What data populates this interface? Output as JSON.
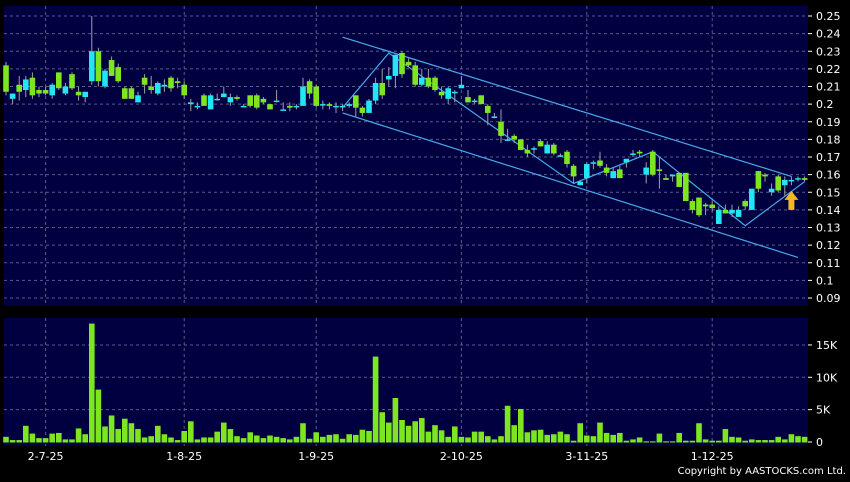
{
  "colors": {
    "background": "#000000",
    "plot_bg": "#000040",
    "grid": "#5a5a8a",
    "up": "#22e5f5",
    "down": "#7ee621",
    "volume": "#7ee621",
    "trendline": "#4aa8e8",
    "wick": "#a0a0a0",
    "arrow": "#f5b623"
  },
  "copyright": "Copyright by AASTOCKS.com Ltd.",
  "chart_data": [
    {
      "type": "candlestick",
      "title": "",
      "ylim": [
        0.09,
        0.25
      ],
      "yticks": [
        "0.25",
        "0.24",
        "0.23",
        "0.22",
        "0.21",
        "0.2",
        "0.19",
        "0.18",
        "0.17",
        "0.16",
        "0.15",
        "0.14",
        "0.13",
        "0.12",
        "0.11",
        "0.1",
        "0.09"
      ],
      "grid": true,
      "y_axis_position": "right",
      "xticks": [
        {
          "label": "2-7-25",
          "index": 6
        },
        {
          "label": "1-8-25",
          "index": 27
        },
        {
          "label": "1-9-25",
          "index": 47
        },
        {
          "label": "2-10-25",
          "index": 69
        },
        {
          "label": "3-11-25",
          "index": 88
        },
        {
          "label": "1-12-25",
          "index": 107
        }
      ],
      "ohlc": [
        [
          0.222,
          0.224,
          0.205,
          0.207
        ],
        [
          0.203,
          0.206,
          0.2,
          0.206
        ],
        [
          0.211,
          0.216,
          0.202,
          0.207
        ],
        [
          0.208,
          0.216,
          0.204,
          0.214
        ],
        [
          0.215,
          0.218,
          0.203,
          0.205
        ],
        [
          0.208,
          0.21,
          0.204,
          0.206
        ],
        [
          0.208,
          0.21,
          0.205,
          0.206
        ],
        [
          0.205,
          0.212,
          0.203,
          0.211
        ],
        [
          0.218,
          0.218,
          0.208,
          0.209
        ],
        [
          0.206,
          0.212,
          0.205,
          0.21
        ],
        [
          0.217,
          0.218,
          0.208,
          0.209
        ],
        [
          0.207,
          0.21,
          0.202,
          0.205
        ],
        [
          0.204,
          0.207,
          0.201,
          0.207
        ],
        [
          0.213,
          0.25,
          0.211,
          0.23
        ],
        [
          0.23,
          0.232,
          0.21,
          0.213
        ],
        [
          0.21,
          0.22,
          0.209,
          0.219
        ],
        [
          0.225,
          0.227,
          0.216,
          0.216
        ],
        [
          0.221,
          0.223,
          0.212,
          0.213
        ],
        [
          0.209,
          0.21,
          0.203,
          0.203
        ],
        [
          0.209,
          0.21,
          0.203,
          0.203
        ],
        [
          0.201,
          0.207,
          0.201,
          0.205
        ],
        [
          0.215,
          0.217,
          0.206,
          0.211
        ],
        [
          0.21,
          0.216,
          0.206,
          0.208
        ],
        [
          0.206,
          0.213,
          0.205,
          0.212
        ],
        [
          0.21,
          0.214,
          0.207,
          0.211
        ],
        [
          0.215,
          0.216,
          0.207,
          0.209
        ],
        [
          0.213,
          0.215,
          0.209,
          0.212
        ],
        [
          0.211,
          0.213,
          0.203,
          0.205
        ],
        [
          0.2,
          0.203,
          0.196,
          0.201
        ],
        [
          0.199,
          0.201,
          0.197,
          0.199
        ],
        [
          0.205,
          0.206,
          0.199,
          0.199
        ],
        [
          0.197,
          0.206,
          0.197,
          0.205
        ],
        [
          0.203,
          0.206,
          0.202,
          0.203
        ],
        [
          0.204,
          0.21,
          0.204,
          0.206
        ],
        [
          0.201,
          0.206,
          0.199,
          0.204
        ],
        [
          0.204,
          0.205,
          0.202,
          0.203
        ],
        [
          0.199,
          0.2,
          0.199,
          0.199
        ],
        [
          0.205,
          0.205,
          0.198,
          0.199
        ],
        [
          0.205,
          0.206,
          0.197,
          0.198
        ],
        [
          0.203,
          0.204,
          0.2,
          0.201
        ],
        [
          0.2,
          0.2,
          0.197,
          0.197
        ],
        [
          0.202,
          0.208,
          0.201,
          0.202
        ],
        [
          0.197,
          0.201,
          0.197,
          0.197
        ],
        [
          0.199,
          0.201,
          0.196,
          0.198
        ],
        [
          0.199,
          0.2,
          0.197,
          0.199
        ],
        [
          0.199,
          0.215,
          0.199,
          0.21
        ],
        [
          0.213,
          0.214,
          0.203,
          0.206
        ],
        [
          0.21,
          0.211,
          0.198,
          0.199
        ],
        [
          0.2,
          0.202,
          0.197,
          0.2
        ],
        [
          0.2,
          0.201,
          0.197,
          0.199
        ],
        [
          0.199,
          0.201,
          0.195,
          0.199
        ],
        [
          0.199,
          0.2,
          0.196,
          0.199
        ],
        [
          0.199,
          0.201,
          0.198,
          0.2
        ],
        [
          0.205,
          0.205,
          0.193,
          0.198
        ],
        [
          0.198,
          0.199,
          0.193,
          0.195
        ],
        [
          0.195,
          0.203,
          0.195,
          0.202
        ],
        [
          0.202,
          0.215,
          0.2,
          0.212
        ],
        [
          0.212,
          0.22,
          0.203,
          0.205
        ],
        [
          0.214,
          0.221,
          0.21,
          0.216
        ],
        [
          0.216,
          0.228,
          0.209,
          0.228
        ],
        [
          0.229,
          0.23,
          0.215,
          0.217
        ],
        [
          0.224,
          0.226,
          0.221,
          0.222
        ],
        [
          0.222,
          0.224,
          0.21,
          0.211
        ],
        [
          0.211,
          0.22,
          0.21,
          0.215
        ],
        [
          0.215,
          0.22,
          0.209,
          0.21
        ],
        [
          0.215,
          0.216,
          0.207,
          0.208
        ],
        [
          0.207,
          0.21,
          0.203,
          0.205
        ],
        [
          0.203,
          0.21,
          0.2,
          0.209
        ],
        [
          0.207,
          0.208,
          0.201,
          0.207
        ],
        [
          0.209,
          0.216,
          0.209,
          0.211
        ],
        [
          0.204,
          0.208,
          0.201,
          0.201
        ],
        [
          0.202,
          0.203,
          0.2,
          0.202
        ],
        [
          0.205,
          0.205,
          0.2,
          0.2
        ],
        [
          0.199,
          0.2,
          0.188,
          0.195
        ],
        [
          0.193,
          0.195,
          0.192,
          0.193
        ],
        [
          0.19,
          0.197,
          0.178,
          0.182
        ],
        [
          0.18,
          0.186,
          0.179,
          0.18
        ],
        [
          0.182,
          0.183,
          0.178,
          0.18
        ],
        [
          0.18,
          0.18,
          0.174,
          0.174
        ],
        [
          0.174,
          0.177,
          0.17,
          0.172
        ],
        [
          0.175,
          0.176,
          0.172,
          0.175
        ],
        [
          0.179,
          0.18,
          0.176,
          0.176
        ],
        [
          0.172,
          0.179,
          0.172,
          0.177
        ],
        [
          0.177,
          0.178,
          0.171,
          0.172
        ],
        [
          0.171,
          0.172,
          0.17,
          0.171
        ],
        [
          0.173,
          0.174,
          0.164,
          0.166
        ],
        [
          0.165,
          0.166,
          0.155,
          0.159
        ],
        [
          0.154,
          0.157,
          0.154,
          0.156
        ],
        [
          0.158,
          0.167,
          0.155,
          0.166
        ],
        [
          0.167,
          0.168,
          0.163,
          0.167
        ],
        [
          0.168,
          0.173,
          0.164,
          0.165
        ],
        [
          0.164,
          0.166,
          0.159,
          0.161
        ],
        [
          0.158,
          0.164,
          0.158,
          0.162
        ],
        [
          0.163,
          0.165,
          0.158,
          0.158
        ],
        [
          0.167,
          0.168,
          0.164,
          0.169
        ],
        [
          0.172,
          0.174,
          0.17,
          0.172
        ],
        [
          0.173,
          0.174,
          0.17,
          0.172
        ],
        [
          0.16,
          0.167,
          0.155,
          0.164
        ],
        [
          0.173,
          0.174,
          0.159,
          0.16
        ],
        [
          0.163,
          0.17,
          0.152,
          0.162
        ],
        [
          0.158,
          0.16,
          0.157,
          0.157
        ],
        [
          0.159,
          0.16,
          0.156,
          0.16
        ],
        [
          0.161,
          0.161,
          0.153,
          0.153
        ],
        [
          0.161,
          0.161,
          0.145,
          0.145
        ],
        [
          0.145,
          0.146,
          0.138,
          0.14
        ],
        [
          0.147,
          0.147,
          0.136,
          0.137
        ],
        [
          0.143,
          0.144,
          0.137,
          0.142
        ],
        [
          0.143,
          0.145,
          0.139,
          0.141
        ],
        [
          0.132,
          0.142,
          0.132,
          0.14
        ],
        [
          0.14,
          0.143,
          0.138,
          0.138
        ],
        [
          0.138,
          0.143,
          0.136,
          0.14
        ],
        [
          0.136,
          0.142,
          0.136,
          0.14
        ],
        [
          0.145,
          0.146,
          0.14,
          0.142
        ],
        [
          0.14,
          0.152,
          0.14,
          0.152
        ],
        [
          0.162,
          0.162,
          0.15,
          0.152
        ],
        [
          0.16,
          0.161,
          0.156,
          0.159
        ],
        [
          0.15,
          0.155,
          0.148,
          0.152
        ],
        [
          0.159,
          0.16,
          0.15,
          0.151
        ],
        [
          0.154,
          0.159,
          0.148,
          0.157
        ],
        [
          0.157,
          0.159,
          0.154,
          0.157
        ],
        [
          0.158,
          0.159,
          0.156,
          0.158
        ],
        [
          0.158,
          0.159,
          0.156,
          0.157
        ]
      ],
      "trendlines": [
        {
          "name": "channel-upper",
          "points": [
            [
              51,
              0.238
            ],
            [
              119,
              0.159
            ]
          ]
        },
        {
          "name": "channel-lower",
          "points": [
            [
              51,
              0.195
            ],
            [
              120,
              0.113
            ]
          ]
        },
        {
          "name": "zigzag",
          "points": [
            [
              51,
              0.198
            ],
            [
              58,
              0.229
            ],
            [
              86,
              0.155
            ],
            [
              98,
              0.173
            ],
            [
              112,
              0.131
            ],
            [
              121,
              0.156
            ]
          ]
        }
      ],
      "annotation": {
        "type": "up-arrow",
        "index": 119,
        "price": 0.14
      }
    },
    {
      "type": "bar",
      "title": "",
      "ylim": [
        0,
        19
      ],
      "yticks": [
        {
          "label": "15K",
          "value": 15
        },
        {
          "label": "10K",
          "value": 10
        },
        {
          "label": "5K",
          "value": 5
        },
        {
          "label": "0",
          "value": 0
        }
      ],
      "unit": "K",
      "grid": true,
      "values": [
        0.8,
        0.3,
        0.3,
        2.5,
        1.3,
        0.6,
        0.6,
        1.3,
        1.4,
        0.4,
        0.4,
        2.1,
        1.2,
        18.3,
        8.1,
        2.4,
        4.1,
        2.0,
        3.6,
        2.9,
        2.0,
        0.7,
        0.9,
        2.5,
        1.2,
        0.7,
        0.3,
        1.7,
        3.2,
        0.4,
        0.7,
        0.7,
        1.6,
        3.0,
        2.0,
        0.9,
        0.6,
        1.5,
        1.0,
        0.6,
        1.0,
        0.8,
        0.6,
        0.4,
        0.8,
        2.9,
        0.5,
        1.5,
        0.8,
        1.1,
        1.2,
        0.5,
        1.2,
        1.1,
        1.9,
        1.7,
        13.2,
        4.6,
        3.0,
        6.8,
        3.4,
        2.5,
        3.2,
        3.7,
        1.6,
        2.6,
        1.8,
        0.8,
        2.4,
        0.8,
        0.7,
        1.6,
        1.6,
        0.9,
        0.4,
        0.9,
        5.6,
        2.6,
        5.1,
        1.5,
        1.8,
        1.9,
        1.1,
        1.2,
        1.6,
        1.2,
        0.2,
        2.9,
        1.0,
        0.9,
        3.0,
        1.4,
        1.1,
        1.4,
        0.2,
        0.4,
        0.7,
        0.1,
        0.1,
        1.3,
        0.1,
        0.1,
        1.4,
        0.2,
        0.2,
        2.9,
        0.4,
        0.2,
        0.2,
        2.0,
        0.8,
        0.7,
        0.2,
        0.4,
        0.3,
        0.3,
        0.3,
        0.8,
        0.4,
        1.2,
        0.9,
        0.8
      ]
    }
  ]
}
